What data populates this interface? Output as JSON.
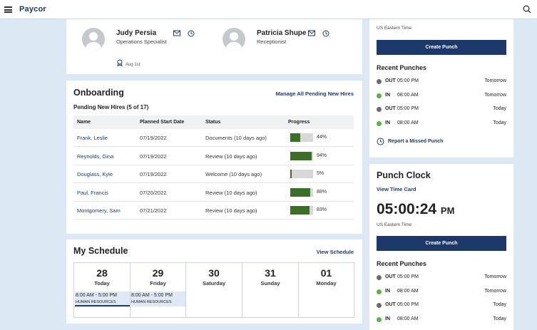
{
  "app": {
    "logo": "Paycor"
  },
  "team": [
    {
      "name": "Judy Persia",
      "role": "Operations Specialist",
      "anniversary": "Aug 1st"
    },
    {
      "name": "Patricia Shupe",
      "role": "Receptionist"
    }
  ],
  "onboarding": {
    "title": "Onboarding",
    "manage_link": "Manage All Pending New Hires",
    "subtitle": "Pending New Hires (5 of 17)",
    "columns": [
      "Name",
      "Planned Start Date",
      "Status",
      "Progress"
    ],
    "rows": [
      {
        "name": "Frank, Leslie",
        "start": "07/19/2022",
        "status": "Documents (10 days ago)",
        "progress": 44,
        "progress_label": "44%"
      },
      {
        "name": "Reynolds, Gina",
        "start": "07/19/2022",
        "status": "Review (10 days ago)",
        "progress": 94,
        "progress_label": "94%"
      },
      {
        "name": "Douglass, Kyle",
        "start": "07/19/2022",
        "status": "Welcome (10 days ago)",
        "progress": 5,
        "progress_label": "5%"
      },
      {
        "name": "Paul, Francis",
        "start": "07/20/2022",
        "status": "Review (10 days ago)",
        "progress": 88,
        "progress_label": "88%"
      },
      {
        "name": "Montgomery, Sam",
        "start": "07/21/2022",
        "status": "Review (10 days ago)",
        "progress": 83,
        "progress_label": "83%"
      }
    ]
  },
  "schedule": {
    "title": "My Schedule",
    "view_link": "View Schedule",
    "days": [
      {
        "num": "28",
        "label": "Today",
        "shift": "8:00 AM - 5:00 PM",
        "dept": "HUMAN RESOURCES"
      },
      {
        "num": "29",
        "label": "Friday",
        "shift": "8:00 AM - 5:00 PM",
        "dept": "HUMAN RESOURCES"
      },
      {
        "num": "30",
        "label": "Saturday"
      },
      {
        "num": "31",
        "label": "Sunday"
      },
      {
        "num": "01",
        "label": "Monday"
      }
    ]
  },
  "top_panel": {
    "timezone": "US Eastern Time",
    "create_punch": "Create Punch",
    "recent_title": "Recent Punches",
    "punches": [
      {
        "type": "OUT",
        "time": "05:00 PM",
        "day": "Tomorrow",
        "color": "#6b6b6b"
      },
      {
        "type": "IN",
        "time": "08:00 AM",
        "day": "Tomorrow",
        "color": "#5cb343"
      },
      {
        "type": "OUT",
        "time": "05:00 PM",
        "day": "Today",
        "color": "#6b6b6b"
      },
      {
        "type": "IN",
        "time": "08:00 AM",
        "day": "Today",
        "color": "#5cb343"
      }
    ],
    "missed_link": "Report a Missed Punch"
  },
  "punch_clock": {
    "title": "Punch Clock",
    "time_card_link": "View Time Card",
    "time": "05:00:24",
    "ampm": "PM",
    "timezone": "US Eastern Time",
    "create_punch": "Create Punch",
    "recent_title": "Recent Punches",
    "punches": [
      {
        "type": "OUT",
        "time": "05:00 PM",
        "day": "Tomorrow",
        "color": "#6b6b6b"
      },
      {
        "type": "IN",
        "time": "08:00 AM",
        "day": "Tomorrow",
        "color": "#5cb343"
      },
      {
        "type": "OUT",
        "time": "05:00 PM",
        "day": "Today",
        "color": "#6b6b6b"
      },
      {
        "type": "IN",
        "time": "08:00 AM",
        "day": "Today",
        "color": "#5cb343"
      }
    ]
  }
}
